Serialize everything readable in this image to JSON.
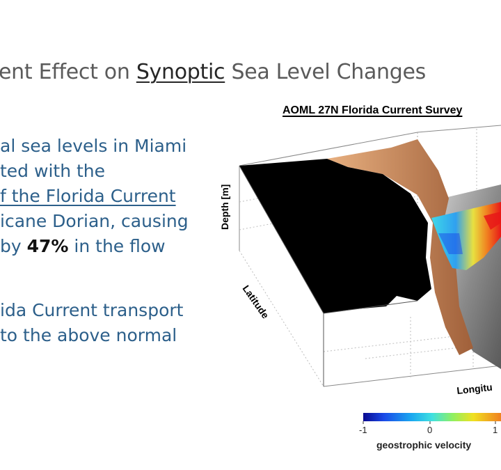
{
  "slide": {
    "title": {
      "part1": "ent Effect on ",
      "underlined": "Synoptic",
      "part2": " Sea Level Changes"
    },
    "bullets": {
      "line1": "al sea levels in Miami",
      "line2": "ted with the",
      "line3": "f the Florida Current",
      "line4": "icane Dorian, causing",
      "line5_pre": "by ",
      "line5_bold": "47%",
      "line5_post": " in the flow",
      "line6": "ida Current transport",
      "line7": "to the above normal"
    }
  },
  "figure": {
    "title": "AOML 27N Florida Current Survey",
    "axis_labels": {
      "z": "Depth [m]",
      "y": "Latitude",
      "x": "Longitu"
    },
    "colorbar": {
      "ticks": [
        "-1",
        "0",
        "1"
      ],
      "label": "geostrophic velocity"
    },
    "colors": {
      "land": "#000000",
      "shelf": "#c98552",
      "seafloor": "#8f8f8f",
      "velocity_low": "#1a1aa8",
      "velocity_mid": "#3fd8e8",
      "velocity_high": "#e81818"
    }
  }
}
